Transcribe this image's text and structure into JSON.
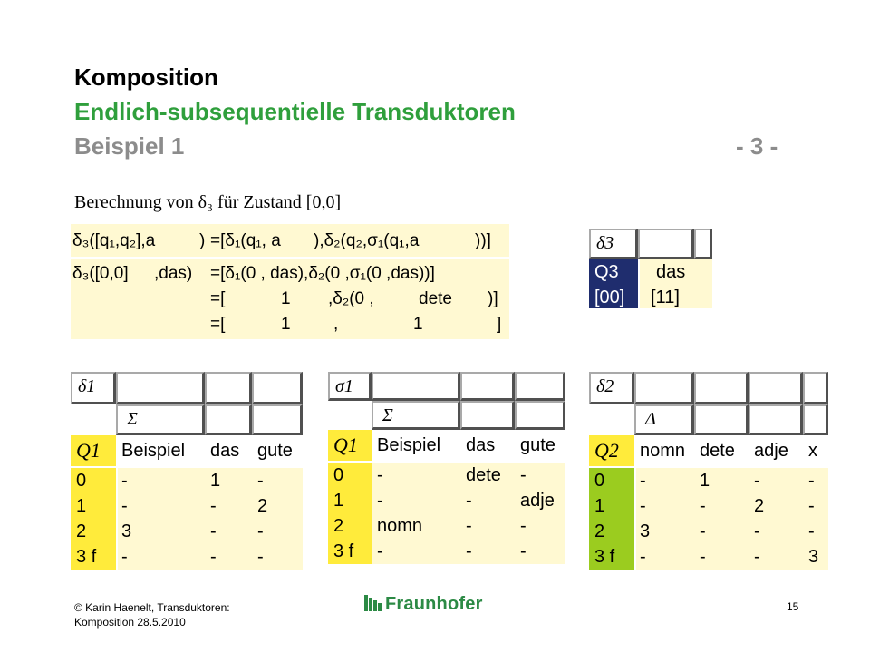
{
  "title": {
    "line1": "Komposition",
    "line2": "Endlich-subsequentielle Transduktoren",
    "line3": "Beispiel  1",
    "page_marker": "- 3 -"
  },
  "subtitle": "Berechnung von δ₃ für Zustand [0,0]",
  "equations": {
    "row1": [
      "δ₃([q₁,q₂],a",
      ")",
      "=[δ₁(q₁,  a",
      "),δ₂(q₂,σ₁(q₁,a",
      "))]"
    ],
    "row2": [
      "δ₃([0,0]",
      ",das)",
      "=[δ₁(0  , das),δ₂(0  ,σ₁(0 ,das))]"
    ],
    "row3": [
      "=[",
      "1",
      ",δ₂(0 ,",
      "dete",
      ")]"
    ],
    "row4": [
      "=[",
      "1",
      ",",
      "1",
      "]"
    ]
  },
  "delta3_table": {
    "corner": "δ3",
    "row_header": "Q3",
    "col_header": "das",
    "state": "[00]",
    "value": "[11]"
  },
  "delta1_table": {
    "corner": "δ1",
    "sigma": "Σ",
    "q": "Q1",
    "cols": [
      "Beispiel",
      "das",
      "gute"
    ],
    "rows": [
      {
        "state": "0",
        "cells": [
          "-",
          "1",
          "-"
        ]
      },
      {
        "state": "1",
        "cells": [
          "-",
          "-",
          "2"
        ]
      },
      {
        "state": "2",
        "cells": [
          "3",
          "-",
          "-"
        ]
      },
      {
        "state": "3 f",
        "cells": [
          "-",
          "-",
          "-"
        ]
      }
    ]
  },
  "sigma1_table": {
    "corner": "σ1",
    "sigma": "Σ",
    "q": "Q1",
    "cols": [
      "Beispiel",
      "das",
      "gute"
    ],
    "rows": [
      {
        "state": "0",
        "cells": [
          "-",
          "dete",
          "-"
        ]
      },
      {
        "state": "1",
        "cells": [
          "-",
          "-",
          "adje"
        ]
      },
      {
        "state": "2",
        "cells": [
          "nomn",
          "-",
          "-"
        ]
      },
      {
        "state": "3 f",
        "cells": [
          "-",
          "-",
          "-"
        ]
      }
    ]
  },
  "delta2_table": {
    "corner": "δ2",
    "sigma": "Δ",
    "q": "Q2",
    "cols": [
      "nomn",
      "dete",
      "adje",
      "x"
    ],
    "rows": [
      {
        "state": "0",
        "cells": [
          "-",
          "1",
          "-",
          "-"
        ]
      },
      {
        "state": "1",
        "cells": [
          "-",
          "-",
          "2",
          "-"
        ]
      },
      {
        "state": "2",
        "cells": [
          "3",
          "-",
          "-",
          "-"
        ]
      },
      {
        "state": "3 f",
        "cells": [
          "-",
          "-",
          "-",
          "3"
        ]
      }
    ]
  },
  "footer": {
    "line1": "© Karin  Haenelt, Transduktoren:",
    "line2": "Komposition 28.5.2010",
    "page": "15",
    "logo": "Fraunhofer"
  },
  "colors": {
    "title_green": "#2f9f3c",
    "title_gray": "#8c8c8c",
    "cell_yellow_light": "#fff9d2",
    "state_yellow": "#ffeb3b",
    "state_green": "#9bcc1f",
    "navy": "#1f2d6e"
  }
}
